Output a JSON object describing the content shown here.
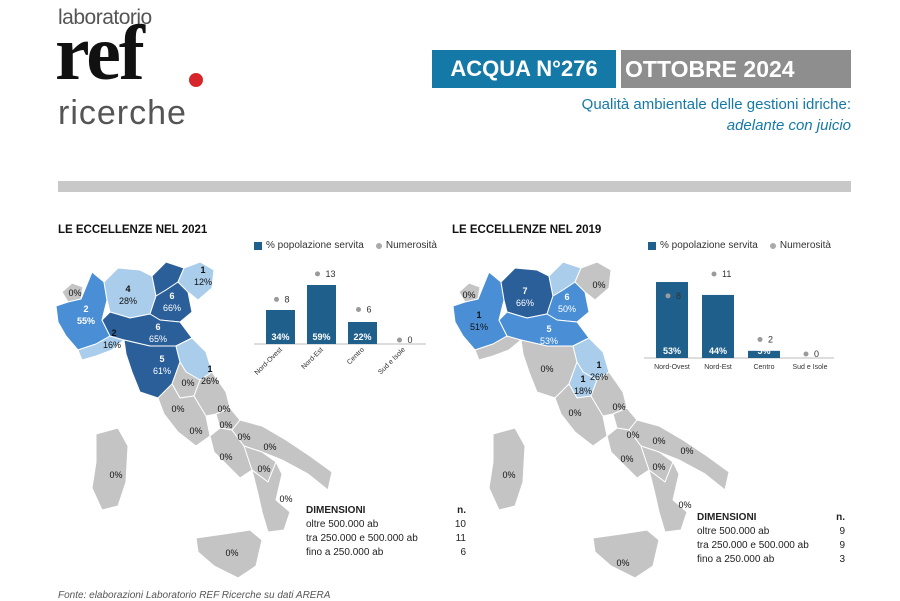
{
  "logo": {
    "top": "laboratorio",
    "main": "ref",
    "bottom": "ricerche"
  },
  "header": {
    "issue": "ACQUA N°276",
    "date": "OTTOBRE 2024",
    "subtitle_line1": "Qualità ambientale delle gestioni idriche:",
    "subtitle_line2": "adelante con juicio"
  },
  "legend": {
    "series1": "% popolazione servita",
    "series2": "Numerosità"
  },
  "colors": {
    "accent": "#1579a8",
    "bar": "#1f5f8b",
    "dark_region": "#2b5f9a",
    "mid_region": "#4a8fd6",
    "light_region": "#a9cdea",
    "grey_region": "#c4c4c4"
  },
  "panels": [
    {
      "title": "LE ECCELLENZE NEL 2021",
      "map_labels": [
        {
          "n": "0%"
        },
        {
          "n": "2",
          "p": "55%"
        },
        {
          "n": "4",
          "p": "28%"
        },
        {
          "n": "1",
          "p": "12%"
        },
        {
          "n": "6",
          "p": "66%"
        },
        {
          "n": "2",
          "p": "16%"
        },
        {
          "n": "6",
          "p": "65%"
        },
        {
          "n": "5",
          "p": "61%"
        },
        {
          "n": "1",
          "p": "26%"
        },
        {
          "n": "0%"
        },
        {
          "n": "0%"
        },
        {
          "n": "0%"
        },
        {
          "n": "0%"
        },
        {
          "n": "0%"
        },
        {
          "n": "0%"
        },
        {
          "n": "0%"
        },
        {
          "n": "0%"
        },
        {
          "n": "0%"
        },
        {
          "n": "0%"
        },
        {
          "n": "0%"
        },
        {
          "n": "0%"
        }
      ],
      "dimensions": {
        "header": "DIMENSIONI",
        "header_n": "n.",
        "rows": [
          {
            "label": "oltre 500.000 ab",
            "n": "10"
          },
          {
            "label": "tra 250.000 e 500.000 ab",
            "n": "11"
          },
          {
            "label": "fino a 250.000 ab",
            "n": "6"
          }
        ]
      }
    },
    {
      "title": "LE ECCELLENZE NEL 2019",
      "map_labels": [
        {
          "n": "0%"
        },
        {
          "n": "1",
          "p": "51%"
        },
        {
          "n": "7",
          "p": "66%"
        },
        {
          "n": "6",
          "p": "50%"
        },
        {
          "n": "0%"
        },
        {
          "n": "5",
          "p": "53%"
        },
        {
          "n": "1",
          "p": "26%"
        },
        {
          "n": "1",
          "p": "18%"
        },
        {
          "n": "0%"
        },
        {
          "n": "0%"
        },
        {
          "n": "0%"
        },
        {
          "n": "0%"
        },
        {
          "n": "0%"
        },
        {
          "n": "0%"
        },
        {
          "n": "0%"
        },
        {
          "n": "0%"
        },
        {
          "n": "0%"
        },
        {
          "n": "0%"
        },
        {
          "n": "0%"
        }
      ],
      "dimensions": {
        "header": "DIMENSIONI",
        "header_n": "n.",
        "rows": [
          {
            "label": "oltre 500.000 ab",
            "n": "9"
          },
          {
            "label": "tra 250.000 e 500.000 ab",
            "n": "9"
          },
          {
            "label": "fino a 250.000 ab",
            "n": "3"
          }
        ]
      }
    }
  ],
  "chart_data": [
    {
      "type": "bar",
      "categories": [
        "Nord-Ovest",
        "Nord-Est",
        "Centro",
        "Sud e Isole"
      ],
      "series": [
        {
          "name": "% popolazione servita",
          "values": [
            34,
            59,
            22,
            0
          ],
          "labels": [
            "34%",
            "59%",
            "22%",
            ""
          ]
        },
        {
          "name": "Numerosità",
          "values": [
            8,
            13,
            6,
            0
          ]
        }
      ],
      "ylim": [
        0,
        70
      ]
    },
    {
      "type": "bar",
      "categories": [
        "Nord-Ovest",
        "Nord-Est",
        "Centro",
        "Sud e Isole"
      ],
      "series": [
        {
          "name": "% popolazione servita",
          "values": [
            53,
            44,
            5,
            0
          ],
          "labels": [
            "53%",
            "44%",
            "5%",
            ""
          ]
        },
        {
          "name": "Numerosità",
          "values": [
            8,
            11,
            2,
            0
          ]
        }
      ],
      "ylim": [
        0,
        60
      ]
    }
  ],
  "source": "Fonte: elaborazioni Laboratorio REF Ricerche su dati ARERA"
}
